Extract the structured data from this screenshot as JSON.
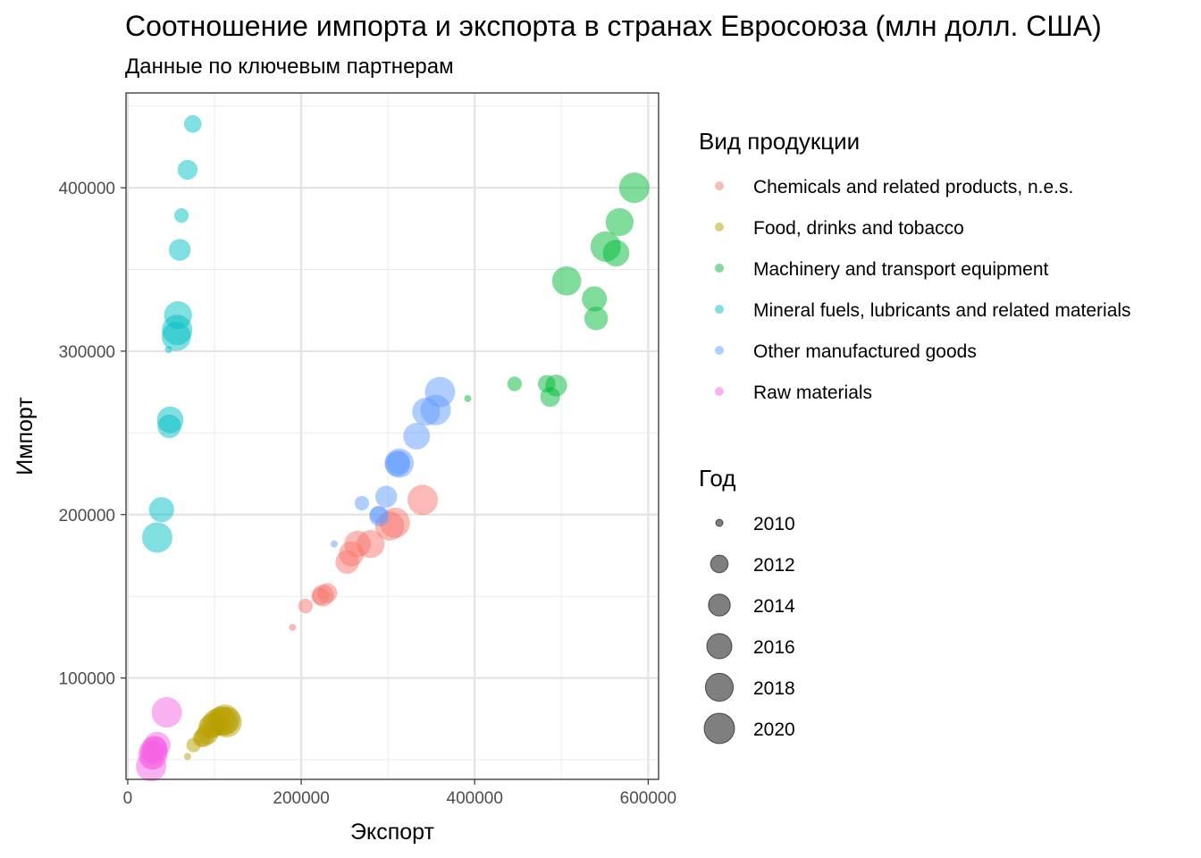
{
  "chart_data": {
    "type": "scatter",
    "title": "Соотношение импорта и экспорта в странах Евросоюза (млн долл. США)",
    "subtitle": "Данные по ключевым партнерам",
    "xlabel": "Экспорт",
    "ylabel": "Импорт",
    "xlim": [
      -2000,
      612000
    ],
    "ylim": [
      38000,
      458000
    ],
    "x_ticks": [
      0,
      200000,
      400000,
      600000
    ],
    "y_ticks": [
      100000,
      200000,
      300000,
      400000
    ],
    "x_tick_labels": [
      "0",
      "200000",
      "400000",
      "600000"
    ],
    "y_tick_labels": [
      "100000",
      "200000",
      "300000",
      "400000"
    ],
    "grid": true,
    "point_opacity": 0.5,
    "color_legend": {
      "title": "Вид продукции",
      "entries": [
        {
          "name": "Chemicals and related products, n.e.s.",
          "color": "#F8766D"
        },
        {
          "name": "Food, drinks and tobacco",
          "color": "#B79F00"
        },
        {
          "name": "Machinery and transport equipment",
          "color": "#00BA38"
        },
        {
          "name": "Mineral fuels, lubricants and related materials",
          "color": "#00BFC4"
        },
        {
          "name": "Other manufactured goods",
          "color": "#619CFF"
        },
        {
          "name": "Raw materials",
          "color": "#F564E3"
        }
      ]
    },
    "size_legend": {
      "title": "Год",
      "entries": [
        "2010",
        "2012",
        "2014",
        "2016",
        "2018",
        "2020"
      ],
      "values": [
        2010,
        2012,
        2014,
        2016,
        2018,
        2020
      ]
    },
    "series": [
      {
        "name": "Chemicals and related products, n.e.s.",
        "points": [
          {
            "x": 190000,
            "y": 131000,
            "year": 2010
          },
          {
            "x": 205000,
            "y": 144000,
            "year": 2011
          },
          {
            "x": 222000,
            "y": 150000,
            "year": 2012
          },
          {
            "x": 230000,
            "y": 152000,
            "year": 2013
          },
          {
            "x": 225000,
            "y": 150500,
            "year": 2014
          },
          {
            "x": 253000,
            "y": 171000,
            "year": 2015
          },
          {
            "x": 258000,
            "y": 176000,
            "year": 2016
          },
          {
            "x": 265000,
            "y": 182000,
            "year": 2017
          },
          {
            "x": 280000,
            "y": 182000,
            "year": 2018
          },
          {
            "x": 302000,
            "y": 193000,
            "year": 2019
          },
          {
            "x": 308000,
            "y": 195000,
            "year": 2020
          },
          {
            "x": 340000,
            "y": 209000,
            "year": 2021
          }
        ]
      },
      {
        "name": "Food, drinks and tobacco",
        "points": [
          {
            "x": 69000,
            "y": 52000,
            "year": 2010
          },
          {
            "x": 76000,
            "y": 59000,
            "year": 2011
          },
          {
            "x": 85000,
            "y": 63000,
            "year": 2012
          },
          {
            "x": 88000,
            "y": 64000,
            "year": 2013
          },
          {
            "x": 92000,
            "y": 66000,
            "year": 2014
          },
          {
            "x": 95000,
            "y": 70000,
            "year": 2015
          },
          {
            "x": 98000,
            "y": 71000,
            "year": 2016
          },
          {
            "x": 102000,
            "y": 73000,
            "year": 2017
          },
          {
            "x": 107000,
            "y": 74000,
            "year": 2018
          },
          {
            "x": 110000,
            "y": 73500,
            "year": 2019
          },
          {
            "x": 112000,
            "y": 74500,
            "year": 2020
          },
          {
            "x": 114000,
            "y": 73000,
            "year": 2021
          }
        ]
      },
      {
        "name": "Machinery and transport equipment",
        "points": [
          {
            "x": 392000,
            "y": 271000,
            "year": 2010
          },
          {
            "x": 446000,
            "y": 280000,
            "year": 2011
          },
          {
            "x": 483000,
            "y": 280000,
            "year": 2012
          },
          {
            "x": 487000,
            "y": 272000,
            "year": 2013
          },
          {
            "x": 494000,
            "y": 279000,
            "year": 2014
          },
          {
            "x": 540000,
            "y": 320000,
            "year": 2015
          },
          {
            "x": 538000,
            "y": 332000,
            "year": 2016
          },
          {
            "x": 563000,
            "y": 360000,
            "year": 2017
          },
          {
            "x": 567000,
            "y": 379000,
            "year": 2018
          },
          {
            "x": 506000,
            "y": 343000,
            "year": 2019
          },
          {
            "x": 551000,
            "y": 364000,
            "year": 2020
          },
          {
            "x": 584000,
            "y": 400000,
            "year": 2021
          }
        ]
      },
      {
        "name": "Mineral fuels, lubricants and related materials",
        "points": [
          {
            "x": 47000,
            "y": 301000,
            "year": 2010
          },
          {
            "x": 62000,
            "y": 383000,
            "year": 2011
          },
          {
            "x": 75000,
            "y": 439000,
            "year": 2012
          },
          {
            "x": 69000,
            "y": 411000,
            "year": 2013
          },
          {
            "x": 60000,
            "y": 362000,
            "year": 2014
          },
          {
            "x": 48000,
            "y": 254000,
            "year": 2015
          },
          {
            "x": 39000,
            "y": 203000,
            "year": 2016
          },
          {
            "x": 49000,
            "y": 258000,
            "year": 2017
          },
          {
            "x": 58000,
            "y": 322000,
            "year": 2018
          },
          {
            "x": 56000,
            "y": 309000,
            "year": 2019
          },
          {
            "x": 34000,
            "y": 186000,
            "year": 2020
          },
          {
            "x": 57000,
            "y": 313000,
            "year": 2021
          }
        ]
      },
      {
        "name": "Other manufactured goods",
        "points": [
          {
            "x": 238000,
            "y": 182000,
            "year": 2010
          },
          {
            "x": 270000,
            "y": 207000,
            "year": 2011
          },
          {
            "x": 289000,
            "y": 200000,
            "year": 2012
          },
          {
            "x": 290000,
            "y": 199000,
            "year": 2013
          },
          {
            "x": 298000,
            "y": 211000,
            "year": 2014
          },
          {
            "x": 312000,
            "y": 232000,
            "year": 2015
          },
          {
            "x": 311000,
            "y": 231000,
            "year": 2016
          },
          {
            "x": 333000,
            "y": 248000,
            "year": 2017
          },
          {
            "x": 344000,
            "y": 263000,
            "year": 2018
          },
          {
            "x": 313000,
            "y": 231500,
            "year": 2019
          },
          {
            "x": 355000,
            "y": 264000,
            "year": 2020
          },
          {
            "x": 360000,
            "y": 275000,
            "year": 2021
          }
        ]
      },
      {
        "name": "Raw materials",
        "points": [
          {
            "x": 27000,
            "y": 50000,
            "year": 2010
          },
          {
            "x": 30000,
            "y": 56000,
            "year": 2011
          },
          {
            "x": 27500,
            "y": 53000,
            "year": 2012
          },
          {
            "x": 33000,
            "y": 58000,
            "year": 2013
          },
          {
            "x": 29000,
            "y": 55000,
            "year": 2014
          },
          {
            "x": 28000,
            "y": 51000,
            "year": 2015
          },
          {
            "x": 31000,
            "y": 57000,
            "year": 2016
          },
          {
            "x": 34000,
            "y": 59000,
            "year": 2017
          },
          {
            "x": 30000,
            "y": 55500,
            "year": 2018
          },
          {
            "x": 29000,
            "y": 53000,
            "year": 2019
          },
          {
            "x": 27000,
            "y": 46000,
            "year": 2020
          },
          {
            "x": 45000,
            "y": 79000,
            "year": 2021
          }
        ]
      }
    ]
  }
}
